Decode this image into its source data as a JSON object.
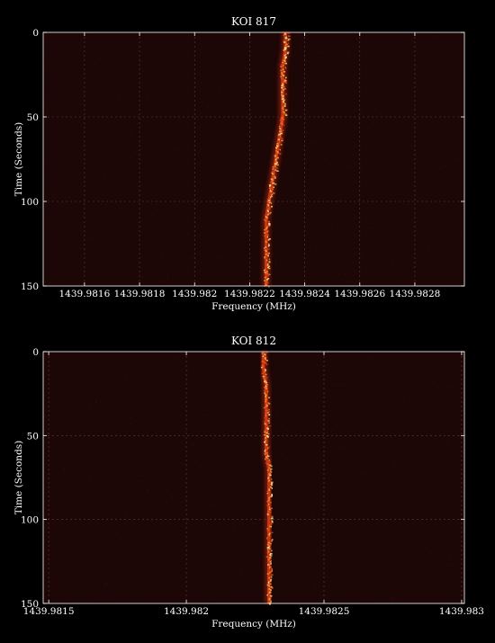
{
  "chart_data": [
    {
      "type": "heatmap",
      "title": "KOI 817",
      "xlabel": "Frequency (MHz)",
      "ylabel": "Time (Seconds)",
      "xlim": [
        1439.98145,
        1439.98298
      ],
      "ylim": [
        0,
        150
      ],
      "y_inverted": true,
      "grid": true,
      "xticks": [
        1439.9816,
        1439.9818,
        1439.982,
        1439.9822,
        1439.9824,
        1439.9826,
        1439.9828
      ],
      "xtick_labels": [
        "1439.9816",
        "1439.9818",
        "1439.982",
        "1439.9822",
        "1439.9824",
        "1439.9826",
        "1439.9828"
      ],
      "yticks": [
        0,
        50,
        100,
        150
      ],
      "ytick_labels": [
        "0",
        "50",
        "100",
        "150"
      ],
      "signal_track": {
        "time": [
          0,
          10,
          20,
          30,
          40,
          50,
          60,
          70,
          80,
          90,
          100,
          110,
          120,
          130,
          140,
          150
        ],
        "frequency": [
          1439.98233,
          1439.98233,
          1439.98232,
          1439.98232,
          1439.98232,
          1439.98232,
          1439.98231,
          1439.9823,
          1439.98229,
          1439.98228,
          1439.98227,
          1439.98226,
          1439.98226,
          1439.98226,
          1439.98226,
          1439.98226
        ]
      }
    },
    {
      "type": "heatmap",
      "title": "KOI 812",
      "xlabel": "Frequency (MHz)",
      "ylabel": "Time (Seconds)",
      "xlim": [
        1439.98148,
        1439.98301
      ],
      "ylim": [
        0,
        150
      ],
      "y_inverted": true,
      "grid": true,
      "xticks": [
        1439.9815,
        1439.982,
        1439.9825,
        1439.983
      ],
      "xtick_labels": [
        "1439.9815",
        "1439.982",
        "1439.9825",
        "1439.983"
      ],
      "yticks": [
        0,
        50,
        100,
        150
      ],
      "ytick_labels": [
        "0",
        "50",
        "100",
        "150"
      ],
      "signal_track": {
        "time": [
          0,
          10,
          20,
          30,
          40,
          50,
          60,
          70,
          80,
          90,
          100,
          110,
          120,
          130,
          140,
          150
        ],
        "frequency": [
          1439.98228,
          1439.98228,
          1439.98229,
          1439.98229,
          1439.98229,
          1439.98229,
          1439.98229,
          1439.9823,
          1439.9823,
          1439.9823,
          1439.9823,
          1439.9823,
          1439.9823,
          1439.9823,
          1439.9823,
          1439.9823
        ]
      }
    }
  ]
}
